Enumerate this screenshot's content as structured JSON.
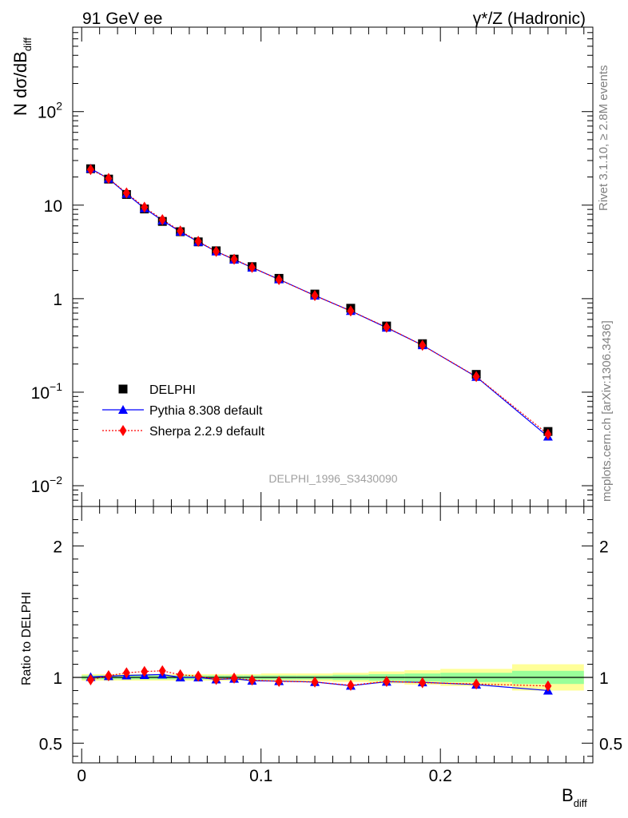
{
  "header": {
    "left": "91 GeV ee",
    "right": "γ*/Z (Hadronic)"
  },
  "side_labels": {
    "rivet": "Rivet 3.1.10, ≥ 2.8M events",
    "mcplots": "mcplots.cern.ch [arXiv:1306.3436]"
  },
  "watermark": "DELPHI_1996_S3430090",
  "colors": {
    "data": "#000000",
    "pythia": "#0000ff",
    "sherpa": "#ff0000",
    "band_inner": "#99ff99",
    "band_outer": "#ffff99"
  },
  "chart_data": [
    {
      "type": "scatter",
      "title": "",
      "ylabel": {
        "main": "N dσ/dB",
        "sub": "diff"
      },
      "yscale": "log",
      "ylim": [
        0.006,
        800
      ],
      "xlim": [
        -0.005,
        0.285
      ],
      "ytick_labels": [
        {
          "value": 0.01,
          "base": "10",
          "exp": "−2"
        },
        {
          "value": 0.1,
          "base": "10",
          "exp": "−1"
        },
        {
          "value": 1,
          "base": "1",
          "exp": ""
        },
        {
          "value": 10,
          "base": "10",
          "exp": ""
        },
        {
          "value": 100,
          "base": "10",
          "exp": "2"
        }
      ],
      "legend": {
        "placement": "bottom-left",
        "entries": [
          "DELPHI",
          "Pythia 8.308 default",
          "Sherpa 2.2.9 default"
        ]
      },
      "x": [
        0.005,
        0.015,
        0.025,
        0.035,
        0.045,
        0.055,
        0.065,
        0.075,
        0.085,
        0.095,
        0.11,
        0.13,
        0.15,
        0.17,
        0.19,
        0.22,
        0.26
      ],
      "series": [
        {
          "name": "DELPHI",
          "values": [
            24.5,
            19.0,
            13.0,
            9.1,
            6.7,
            5.2,
            4.05,
            3.25,
            2.65,
            2.2,
            1.65,
            1.12,
            0.79,
            0.51,
            0.33,
            0.155,
            0.038
          ]
        },
        {
          "name": "Pythia 8.308 default",
          "values": [
            24.6,
            19.2,
            13.2,
            9.25,
            6.85,
            5.2,
            4.05,
            3.2,
            2.62,
            2.15,
            1.61,
            1.08,
            0.74,
            0.49,
            0.318,
            0.146,
            0.0335
          ]
        },
        {
          "name": "Sherpa 2.2.9 default",
          "values": [
            24.0,
            19.3,
            13.5,
            9.5,
            7.0,
            5.3,
            4.1,
            3.2,
            2.64,
            2.16,
            1.6,
            1.08,
            0.74,
            0.495,
            0.317,
            0.147,
            0.0355
          ]
        }
      ]
    },
    {
      "type": "line",
      "title": "",
      "ylabel": "Ratio to DELPHI",
      "xlabel": {
        "main": "B",
        "sub": "diff"
      },
      "ylim": [
        0.35,
        2.3
      ],
      "xlim": [
        -0.005,
        0.285
      ],
      "yticks": [
        0.5,
        1,
        2
      ],
      "ytick_labels": [
        "0.5",
        "1",
        "2"
      ],
      "xticks": [
        0,
        0.1,
        0.2
      ],
      "xtick_labels": [
        "0",
        "0.1",
        "0.2"
      ],
      "x": [
        0.005,
        0.015,
        0.025,
        0.035,
        0.045,
        0.055,
        0.065,
        0.075,
        0.085,
        0.095,
        0.11,
        0.13,
        0.15,
        0.17,
        0.19,
        0.22,
        0.26
      ],
      "bin_edges": [
        0,
        0.01,
        0.02,
        0.03,
        0.04,
        0.05,
        0.06,
        0.07,
        0.08,
        0.09,
        0.1,
        0.12,
        0.14,
        0.16,
        0.18,
        0.2,
        0.24,
        0.28
      ],
      "band_inner": [
        0.015,
        0.015,
        0.015,
        0.015,
        0.015,
        0.015,
        0.015,
        0.015,
        0.015,
        0.015,
        0.015,
        0.015,
        0.02,
        0.025,
        0.03,
        0.035,
        0.05
      ],
      "band_outer": [
        0.025,
        0.025,
        0.025,
        0.025,
        0.025,
        0.025,
        0.025,
        0.025,
        0.025,
        0.025,
        0.03,
        0.03,
        0.035,
        0.045,
        0.055,
        0.065,
        0.1
      ],
      "series": [
        {
          "name": "Pythia 8.308 default",
          "values": [
            1.003,
            1.01,
            1.015,
            1.018,
            1.022,
            1.0,
            1.0,
            0.985,
            0.99,
            0.975,
            0.972,
            0.965,
            0.937,
            0.967,
            0.963,
            0.945,
            0.9
          ]
        },
        {
          "name": "Sherpa 2.2.9 default",
          "values": [
            0.982,
            1.013,
            1.035,
            1.045,
            1.05,
            1.02,
            1.01,
            0.985,
            0.995,
            0.98,
            0.97,
            0.965,
            0.94,
            0.97,
            0.96,
            0.95,
            0.935
          ]
        }
      ]
    }
  ]
}
